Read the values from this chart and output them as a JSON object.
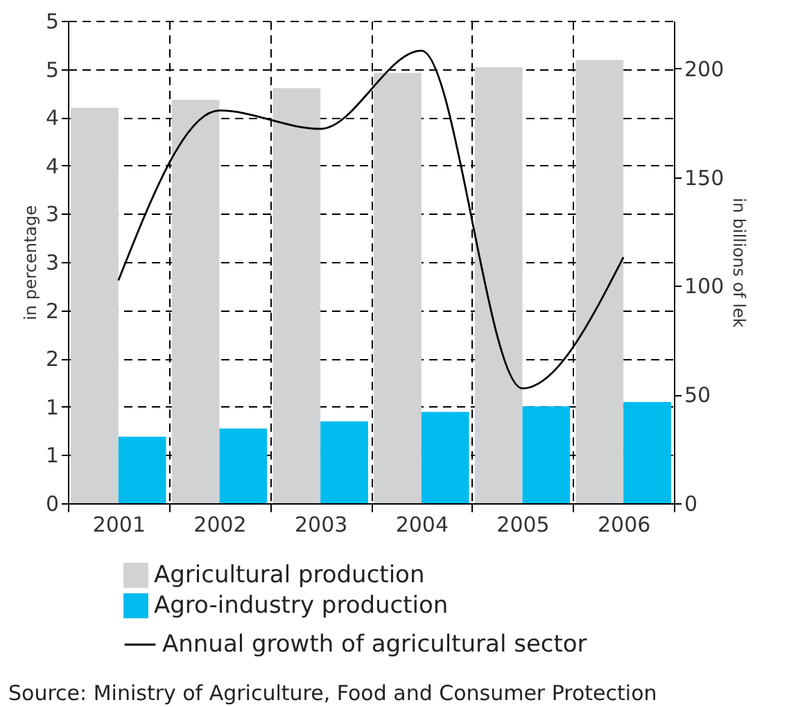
{
  "chart_data": {
    "type": "bar",
    "categories": [
      "2001",
      "2002",
      "2003",
      "2004",
      "2005",
      "2006"
    ],
    "series": [
      {
        "name": "Agricultural production",
        "axis": "y2",
        "color": "#d1d2d4",
        "values": [
          182,
          185.6,
          191,
          198,
          200.7,
          204
        ]
      },
      {
        "name": "Agro-industry production",
        "axis": "y2",
        "color": "#00bcee",
        "values": [
          30.6,
          34.4,
          37.6,
          42,
          44.6,
          46.6
        ]
      },
      {
        "name": "Annual growth of agricultural sector",
        "type": "line",
        "color": "#000000",
        "values": [
          2.31,
          4.07,
          3.88,
          4.69,
          1.19,
          2.55
        ]
      }
    ],
    "ylabel": "in percentage",
    "y2label": "in billions of lek",
    "ylim": [
      0,
      5
    ],
    "yticks": [
      0,
      {
        "value": 0.5,
        "label": "1"
      },
      1,
      {
        "value": 1.5,
        "label": "2"
      },
      2,
      {
        "value": 2.5,
        "label": "3"
      },
      3,
      {
        "value": 3.5,
        "label": "4"
      },
      4,
      {
        "value": 4.5,
        "label": "5"
      },
      5
    ],
    "y2lim": [
      0,
      222
    ],
    "y2ticks": [
      0,
      50,
      100,
      150,
      200
    ],
    "grid": true,
    "legend": "bottom",
    "annotations": [
      "Source: Ministry of Agriculture, Food and Consumer Protection"
    ]
  }
}
